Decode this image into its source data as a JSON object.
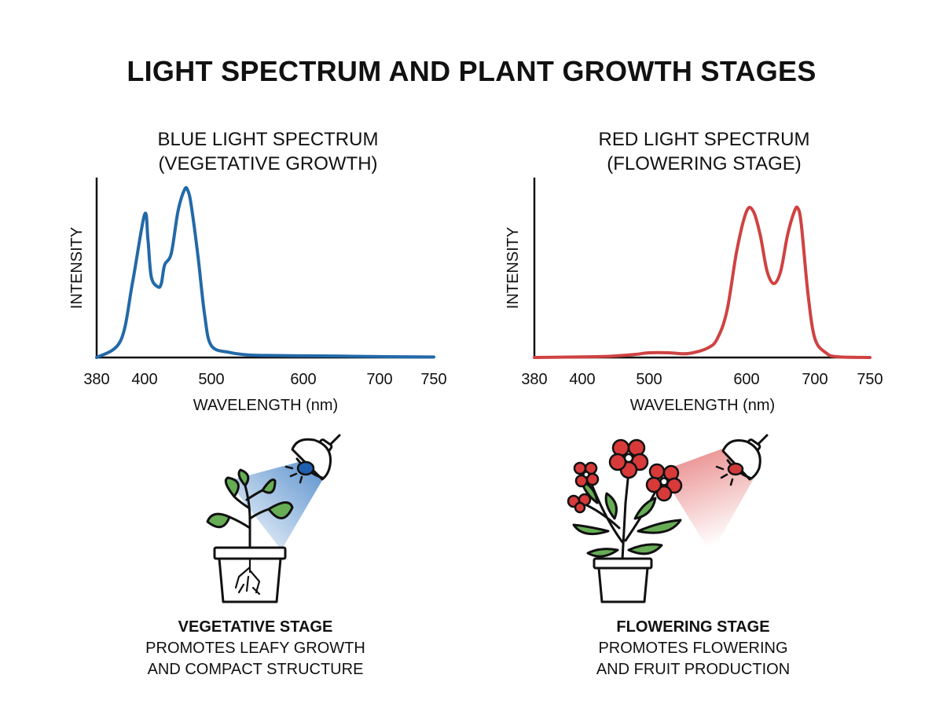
{
  "title": "LIGHT SPECTRUM AND PLANT GROWTH STAGES",
  "panels": [
    {
      "title_line1": "BLUE LIGHT SPECTRUM",
      "title_line2": "(VEGETATIVE GROWTH)",
      "ylabel": "INTENSITY",
      "xlabel": "WAVELENGTH (nm)",
      "ticks": [
        "380",
        "400",
        "500",
        "600",
        "700",
        "750"
      ],
      "color": "#2269a8",
      "stage_title": "VEGETATIVE STAGE",
      "stage_line1": "PROMOTES LEAFY GROWTH",
      "stage_line2": "AND COMPACT STRUCTURE"
    },
    {
      "title_line1": "RED LIGHT SPECTRUM",
      "title_line2": "(FLOWERING STAGE)",
      "ylabel": "INTENSITY",
      "xlabel": "WAVELENGTH (nm)",
      "ticks": [
        "380",
        "400",
        "500",
        "600",
        "700",
        "750"
      ],
      "color": "#cf4242",
      "stage_title": "FLOWERING STAGE",
      "stage_line1": "PROMOTES FLOWERING",
      "stage_line2": "AND FRUIT PRODUCTION"
    }
  ],
  "chart_data": [
    {
      "type": "line",
      "x_range": [
        380,
        750
      ],
      "x_ticks": [
        380,
        400,
        500,
        600,
        700,
        750
      ],
      "y_range": [
        0,
        1
      ],
      "series": [
        {
          "x": [
            380,
            390,
            395,
            400,
            405,
            410,
            420,
            425,
            430,
            440,
            450,
            460,
            465,
            470,
            480,
            490,
            500,
            520,
            540,
            560,
            600,
            650,
            700,
            750
          ],
          "y": [
            0.0,
            0.1,
            0.45,
            0.85,
            0.7,
            0.48,
            0.42,
            0.44,
            0.55,
            0.62,
            0.87,
            1.0,
            0.99,
            0.9,
            0.6,
            0.25,
            0.07,
            0.03,
            0.015,
            0.012,
            0.01,
            0.008,
            0.005,
            0.003
          ]
        }
      ]
    },
    {
      "type": "line",
      "x_range": [
        380,
        750
      ],
      "x_ticks": [
        380,
        400,
        500,
        600,
        700,
        750
      ],
      "y_range": [
        0,
        1
      ],
      "series": [
        {
          "x": [
            380,
            420,
            450,
            480,
            500,
            520,
            540,
            560,
            570,
            580,
            590,
            600,
            610,
            620,
            630,
            640,
            650,
            660,
            670,
            675,
            680,
            690,
            700,
            710,
            720,
            750
          ],
          "y": [
            0.0,
            0.005,
            0.01,
            0.02,
            0.03,
            0.03,
            0.025,
            0.06,
            0.12,
            0.3,
            0.68,
            0.93,
            0.93,
            0.78,
            0.55,
            0.47,
            0.55,
            0.78,
            0.93,
            0.95,
            0.85,
            0.4,
            0.12,
            0.03,
            0.005,
            0.0
          ]
        }
      ]
    }
  ]
}
